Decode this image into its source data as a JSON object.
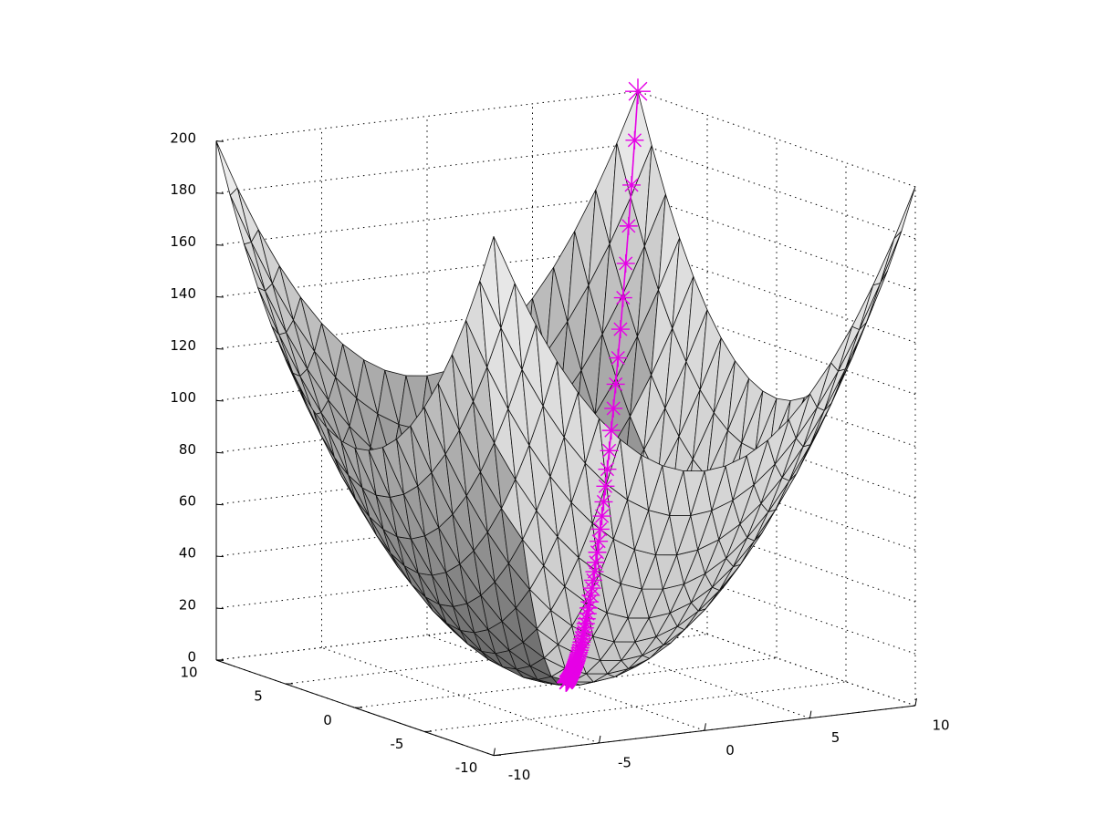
{
  "chart_data": {
    "type": "surface",
    "title": "",
    "xlabel": "",
    "ylabel": "",
    "zlabel": "",
    "surface": {
      "function": "x^2 + y^2",
      "x_range": [
        -10,
        10
      ],
      "y_range": [
        -10,
        10
      ],
      "grid_step": 1,
      "shading": "gray"
    },
    "xlim": [
      -10,
      10
    ],
    "ylim": [
      -10,
      10
    ],
    "zlim": [
      0,
      200
    ],
    "x_ticks": [
      -10,
      -5,
      0,
      5,
      10
    ],
    "y_ticks": [
      -10,
      -5,
      0,
      5,
      10
    ],
    "z_ticks": [
      0,
      20,
      40,
      60,
      80,
      100,
      120,
      140,
      160,
      180,
      200
    ],
    "grid": true,
    "path": {
      "marker": "asterisk",
      "color": "#e600e6",
      "start": [
        10,
        10,
        200
      ],
      "end": [
        0,
        0,
        0
      ]
    }
  }
}
